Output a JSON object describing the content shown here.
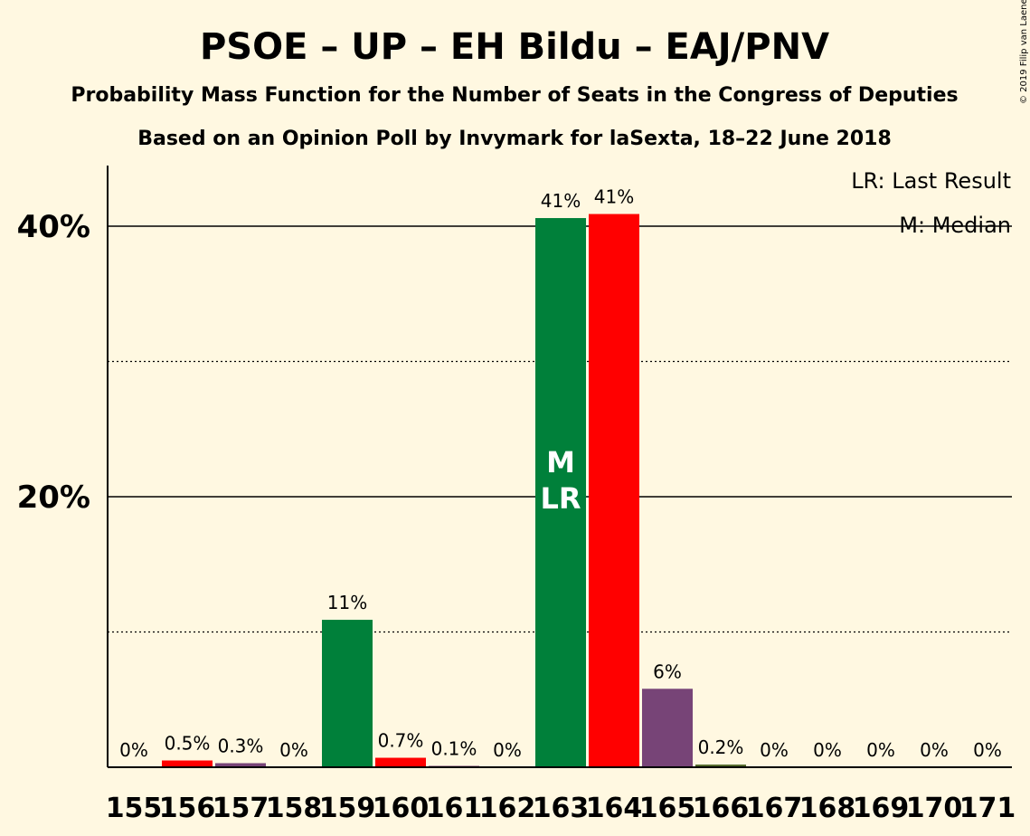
{
  "chart_data": {
    "type": "bar",
    "title": "PSOE – UP – EH Bildu – EAJ/PNV",
    "subtitle": "Probability Mass Function for the Number of Seats in the Congress of Deputies",
    "subtitle2": "Based on an Opinion Poll by Invymark for laSexta, 18–22 June 2018",
    "copyright": "© 2019 Filip van Laenen",
    "legend": {
      "lr": "LR: Last Result",
      "m": "M: Median",
      "placement": "top-right"
    },
    "y_ticks": [
      {
        "value": 20,
        "label": "20%"
      },
      {
        "value": 40,
        "label": "40%"
      }
    ],
    "ylim": [
      0,
      45
    ],
    "grid": {
      "solid": [
        20,
        40
      ],
      "dotted": [
        10,
        30
      ]
    },
    "colors": {
      "green": "#00803a",
      "red": "#ff0000",
      "purple": "#774477",
      "olive": "#556b2f",
      "background": "#fff8e1"
    },
    "categories": [
      "155",
      "156",
      "157",
      "158",
      "159",
      "160",
      "161",
      "162",
      "163",
      "164",
      "165",
      "166",
      "167",
      "168",
      "169",
      "170",
      "171"
    ],
    "values": [
      0,
      0.5,
      0.3,
      0,
      10.9,
      0.7,
      0.1,
      0,
      40.6,
      40.9,
      5.8,
      0.2,
      0,
      0,
      0,
      0,
      0
    ],
    "value_labels": [
      "0%",
      "0.5%",
      "0.3%",
      "0%",
      "11%",
      "0.7%",
      "0.1%",
      "0%",
      "41%",
      "41%",
      "6%",
      "0.2%",
      "0%",
      "0%",
      "0%",
      "0%",
      "0%"
    ],
    "bar_colors": [
      "green",
      "red",
      "purple",
      "green",
      "green",
      "red",
      "purple",
      "green",
      "green",
      "red",
      "purple",
      "olive",
      "green",
      "red",
      "purple",
      "green",
      "red"
    ],
    "markers": {
      "163": [
        "M",
        "LR"
      ]
    }
  }
}
